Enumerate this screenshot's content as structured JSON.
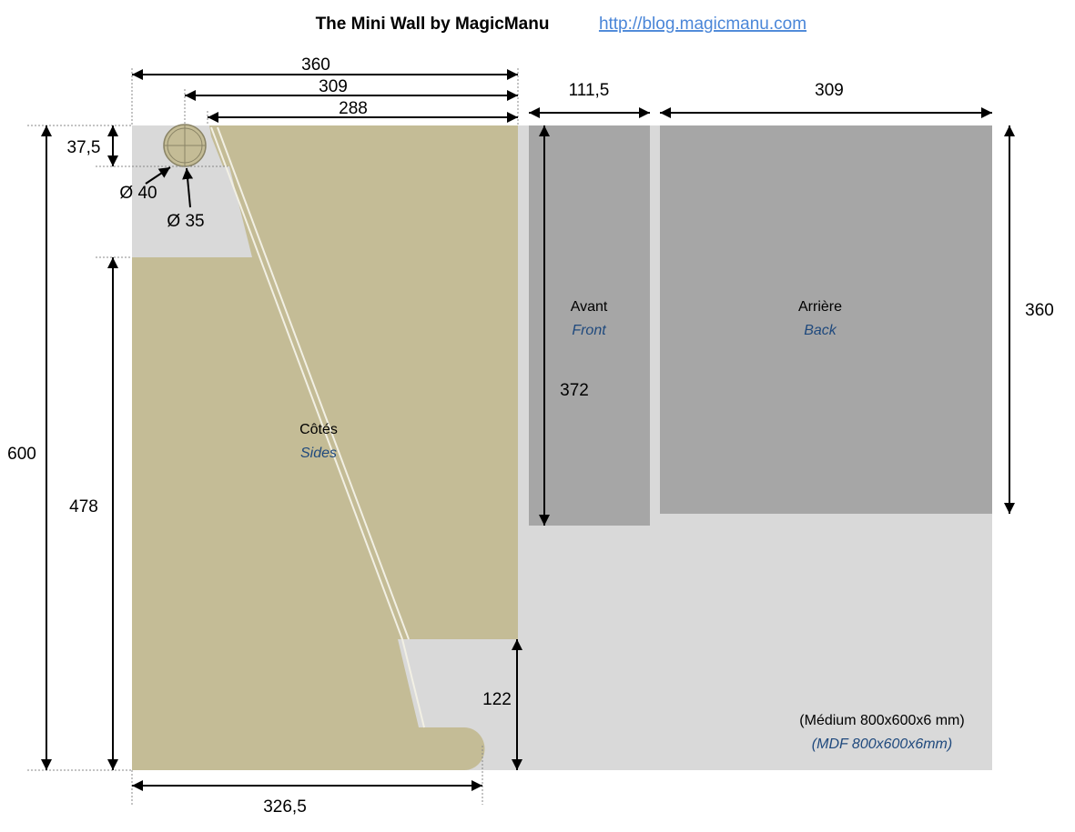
{
  "header": {
    "title": "The Mini Wall by MagicManu",
    "link": "http://blog.magicmanu.com"
  },
  "dimensions": {
    "side_width": "360",
    "rail_width": "309",
    "top_width": "288",
    "front_width": "111,5",
    "back_width": "309",
    "top_height": "37,5",
    "outer_diameter": "Ø 40",
    "inner_diameter": "Ø 35",
    "total_height": "600",
    "lower_height": "478",
    "back_height": "360",
    "front_height": "372",
    "base_height": "122",
    "base_width": "326,5"
  },
  "panels": {
    "front": {
      "label": "Avant",
      "translation": "Front"
    },
    "back": {
      "label": "Arrière",
      "translation": "Back"
    },
    "sides": {
      "label": "Côtés",
      "translation": "Sides"
    }
  },
  "material": {
    "label": "(Médium 800x600x6 mm)",
    "translation": "(MDF 800x600x6mm)"
  }
}
